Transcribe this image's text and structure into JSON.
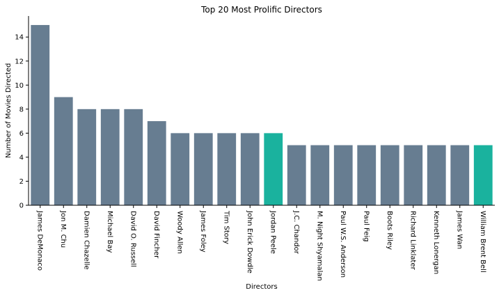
{
  "chart_data": {
    "type": "bar",
    "title": "Top 20 Most Prolific Directors",
    "xlabel": "Directors",
    "ylabel": "Number of Movies Directed",
    "categories": [
      "James DeMonaco",
      "Jon M. Chu",
      "Damien Chazelle",
      "Michael Bay",
      "David O. Russell",
      "David Fincher",
      "Woody Allen",
      "James Foley",
      "Tim Story",
      "John Erick Dowdle",
      "Jordan Peele",
      "J.C. Chandor",
      "M. Night Shyamalan",
      "Paul W.S. Anderson",
      "Paul Feig",
      "Boots Riley",
      "Richard Linklater",
      "Kenneth Lonergan",
      "James Wan",
      "William Brent Bell"
    ],
    "values": [
      15,
      9,
      8,
      8,
      8,
      7,
      6,
      6,
      6,
      6,
      6,
      5,
      5,
      5,
      5,
      5,
      5,
      5,
      5,
      5
    ],
    "highlighted": [
      "Jordan Peele",
      "William Brent Bell"
    ],
    "ylim": [
      0,
      15.75
    ],
    "yticks": [
      0,
      2,
      4,
      6,
      8,
      10,
      12,
      14
    ],
    "grid": false,
    "colors": {
      "default": "#677d91",
      "highlight": "#1ab29e"
    }
  }
}
